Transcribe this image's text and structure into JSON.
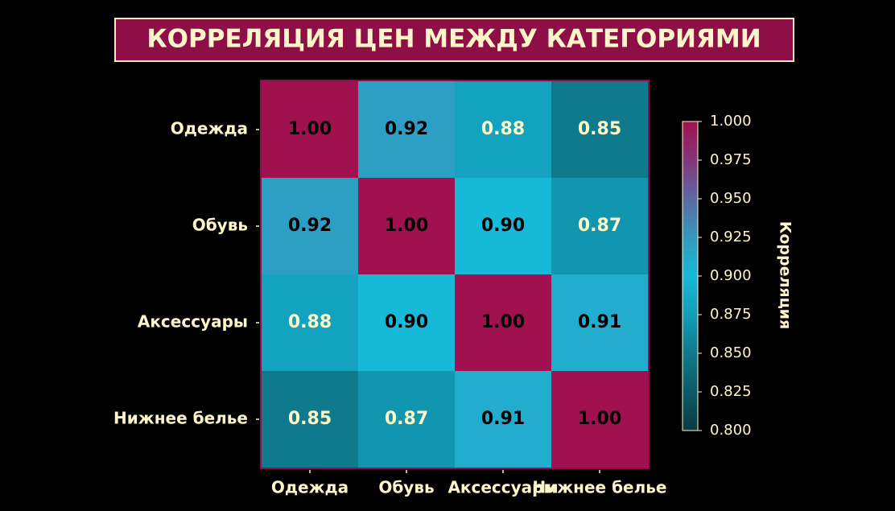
{
  "chart_data": {
    "type": "heatmap",
    "title": "КОРРЕЛЯЦИЯ ЦЕН МЕЖДУ КАТЕГОРИЯМИ",
    "x_categories": [
      "Одежда",
      "Обувь",
      "Аксессуары",
      "Нижнее белье"
    ],
    "y_categories": [
      "Одежда",
      "Обувь",
      "Аксессуары",
      "Нижнее белье"
    ],
    "values": [
      [
        1.0,
        0.92,
        0.88,
        0.85
      ],
      [
        0.92,
        1.0,
        0.9,
        0.87
      ],
      [
        0.88,
        0.9,
        1.0,
        0.91
      ],
      [
        0.85,
        0.87,
        0.91,
        1.0
      ]
    ],
    "value_labels": [
      [
        "1.00",
        "0.92",
        "0.88",
        "0.85"
      ],
      [
        "0.92",
        "1.00",
        "0.90",
        "0.87"
      ],
      [
        "0.88",
        "0.90",
        "1.00",
        "0.91"
      ],
      [
        "0.85",
        "0.87",
        "0.91",
        "1.00"
      ]
    ],
    "label_colors": [
      [
        "#000000",
        "#000000",
        "#fff8c8",
        "#fff8c8"
      ],
      [
        "#000000",
        "#000000",
        "#000000",
        "#fff8c8"
      ],
      [
        "#fff8c8",
        "#000000",
        "#000000",
        "#000000"
      ],
      [
        "#fff8c8",
        "#fff8c8",
        "#000000",
        "#000000"
      ]
    ],
    "colormap": [
      "#0a3a44",
      "#0c5a68",
      "#0e7a8c",
      "#129db8",
      "#17b9d8",
      "#3399bf",
      "#5a6aa5",
      "#85357a",
      "#a0124f"
    ],
    "clim": [
      0.8,
      1.0
    ],
    "cticks": [
      {
        "value": 1.0,
        "label": "1.000"
      },
      0.975,
      {
        "value": 0.95,
        "label": "0.950"
      },
      0.925,
      {
        "value": 0.9,
        "label": "0.900"
      },
      0.875,
      {
        "value": 0.85,
        "label": "0.850"
      },
      0.825,
      {
        "value": 0.8,
        "label": "0.800"
      }
    ],
    "colorbar_label": "Корреляция"
  }
}
